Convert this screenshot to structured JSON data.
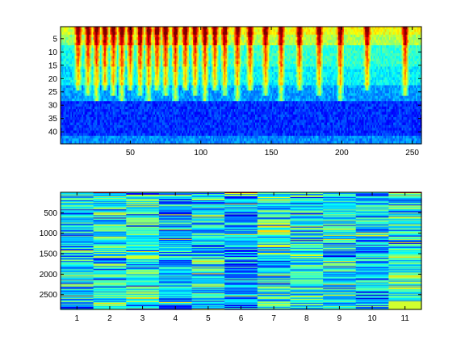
{
  "chart_data": [
    {
      "type": "heatmap",
      "title": "",
      "xlabel": "",
      "ylabel": "",
      "colormap": "jet",
      "xlim": [
        1,
        256
      ],
      "ylim": [
        1,
        44
      ],
      "y_reversed": true,
      "grid": false,
      "rows": 44,
      "cols": 256,
      "x_ticks": [
        50,
        100,
        150,
        200,
        250
      ],
      "y_ticks": [
        5,
        10,
        15,
        20,
        25,
        30,
        35,
        40
      ],
      "pulse_columns": [
        13,
        20,
        26,
        32,
        38,
        44,
        50,
        57,
        63,
        69,
        75,
        82,
        89,
        96,
        103,
        110,
        117,
        126,
        135,
        146,
        157,
        170,
        184,
        199,
        218,
        245
      ],
      "bands": [
        {
          "rows": "1-7",
          "level": "yellow"
        },
        {
          "rows": "8-22",
          "level": "cyan"
        },
        {
          "rows": "23-28",
          "level": "light blue"
        },
        {
          "rows": "29-41",
          "level": "dark blue"
        },
        {
          "rows": "42-44",
          "level": "light blue"
        }
      ]
    },
    {
      "type": "heatmap",
      "title": "",
      "xlabel": "",
      "ylabel": "",
      "colormap": "jet",
      "xlim": [
        1,
        11
      ],
      "ylim": [
        1,
        2860
      ],
      "y_reversed": true,
      "grid": false,
      "rows": 143,
      "cols": 11,
      "x_ticks": [
        1,
        2,
        3,
        4,
        5,
        6,
        7,
        8,
        9,
        10,
        11
      ],
      "y_ticks": [
        500,
        1000,
        1500,
        2000,
        2500
      ],
      "first_row_levels": [
        "cyan",
        "red",
        "cyan",
        "cyan",
        "cyan",
        "red",
        "cyan",
        "cyan",
        "cyan",
        "cyan",
        "red"
      ],
      "patch": {
        "column": 11,
        "rows": "2660-2860",
        "level": "light green"
      }
    }
  ]
}
